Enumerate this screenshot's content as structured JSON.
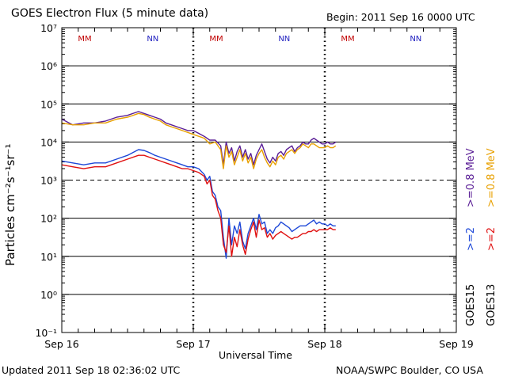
{
  "chart_data": {
    "type": "line",
    "title": "GOES Electron Flux (5 minute data)",
    "begin_label": "Begin: 2011 Sep 16 0000 UTC",
    "xlabel": "Universal Time",
    "ylabel": "Particles cm⁻²s⁻¹sr⁻¹",
    "yscale": "log",
    "ylim_exp": [
      -1,
      7
    ],
    "y_tick_labels": [
      "10⁻¹",
      "10⁰",
      "10¹",
      "10²",
      "10³",
      "10⁴",
      "10⁵",
      "10⁶",
      "10⁷"
    ],
    "xlim_hours": [
      0,
      72
    ],
    "x_tick_labels": [
      "Sep 16",
      "Sep 17",
      "Sep 18",
      "Sep 19"
    ],
    "day_markers": [
      {
        "hour": 4.2,
        "text": "MM",
        "color": "#c00000"
      },
      {
        "hour": 16.6,
        "text": "NN",
        "color": "#2020c0"
      },
      {
        "hour": 28.2,
        "text": "MM",
        "color": "#c00000"
      },
      {
        "hour": 40.6,
        "text": "NN",
        "color": "#2020c0"
      },
      {
        "hour": 52.2,
        "text": "MM",
        "color": "#c00000"
      },
      {
        "hour": 64.6,
        "text": "NN",
        "color": "#2020c0"
      }
    ],
    "threshold_exp": 3,
    "series": [
      {
        "name": "GOES15 >=0.8 MeV",
        "color": "#5a1e96",
        "x": [
          0,
          2,
          4,
          6,
          8,
          10,
          12,
          14,
          15,
          16,
          17,
          18,
          19,
          20,
          21,
          22,
          23,
          24,
          26,
          27,
          28,
          29,
          29.5,
          30,
          30.5,
          31,
          31.5,
          32,
          32.5,
          33,
          33.5,
          34,
          34.5,
          35,
          35.5,
          36,
          36.5,
          37,
          37.5,
          38,
          38.5,
          39,
          39.5,
          40,
          40.5,
          41,
          41.5,
          42,
          42.5,
          43,
          43.5,
          44,
          44.5,
          45,
          45.5,
          46,
          46.5,
          47,
          47.5,
          48,
          48.5,
          49,
          49.5,
          50
        ],
        "y": [
          4.6,
          4.45,
          4.5,
          4.5,
          4.55,
          4.65,
          4.7,
          4.8,
          4.75,
          4.7,
          4.65,
          4.6,
          4.5,
          4.45,
          4.4,
          4.35,
          4.3,
          4.3,
          4.15,
          4.05,
          4.05,
          3.9,
          3.4,
          4.0,
          3.7,
          3.85,
          3.5,
          3.75,
          3.9,
          3.6,
          3.8,
          3.55,
          3.7,
          3.4,
          3.65,
          3.8,
          3.95,
          3.75,
          3.55,
          3.45,
          3.6,
          3.5,
          3.7,
          3.75,
          3.65,
          3.8,
          3.85,
          3.9,
          3.75,
          3.85,
          3.9,
          4.0,
          3.95,
          3.95,
          4.05,
          4.1,
          4.05,
          4.0,
          3.95,
          3.95,
          4.0,
          3.95,
          3.95,
          4.0
        ]
      },
      {
        "name": "GOES13 >=0.8 MeV",
        "color": "#e8a000",
        "x": [
          0,
          2,
          4,
          6,
          8,
          10,
          12,
          14,
          15,
          16,
          17,
          18,
          19,
          20,
          21,
          22,
          23,
          24,
          26,
          27,
          28,
          29,
          29.5,
          30,
          30.5,
          31,
          31.5,
          32,
          32.5,
          33,
          33.5,
          34,
          34.5,
          35,
          35.5,
          36,
          36.5,
          37,
          37.5,
          38,
          38.5,
          39,
          39.5,
          40,
          40.5,
          41,
          41.5,
          42,
          42.5,
          43,
          43.5,
          44,
          44.5,
          45,
          45.5,
          46,
          46.5,
          47,
          47.5,
          48,
          48.5,
          49,
          49.5,
          50
        ],
        "y": [
          4.5,
          4.45,
          4.45,
          4.5,
          4.5,
          4.6,
          4.65,
          4.75,
          4.72,
          4.65,
          4.6,
          4.55,
          4.45,
          4.4,
          4.35,
          4.3,
          4.25,
          4.2,
          4.1,
          3.95,
          4.0,
          3.8,
          3.3,
          3.9,
          3.6,
          3.75,
          3.4,
          3.6,
          3.8,
          3.5,
          3.7,
          3.45,
          3.6,
          3.3,
          3.55,
          3.7,
          3.8,
          3.6,
          3.45,
          3.35,
          3.5,
          3.4,
          3.6,
          3.65,
          3.55,
          3.7,
          3.75,
          3.8,
          3.7,
          3.8,
          3.85,
          3.95,
          3.9,
          3.85,
          3.95,
          3.95,
          3.9,
          3.85,
          3.85,
          3.85,
          3.9,
          3.85,
          3.85,
          3.9
        ]
      },
      {
        "name": "GOES15 >=2 MeV",
        "color": "#1e48d8",
        "x": [
          0,
          2,
          4,
          6,
          8,
          10,
          12,
          14,
          15,
          16,
          17,
          18,
          19,
          20,
          21,
          22,
          23,
          24,
          25,
          26,
          26.5,
          27,
          27.5,
          28,
          28.5,
          29,
          29.5,
          30,
          30.5,
          31,
          31.5,
          32,
          32.5,
          33,
          33.5,
          34,
          34.5,
          35,
          35.5,
          36,
          36.5,
          37,
          37.5,
          38,
          38.5,
          39,
          39.5,
          40,
          40.5,
          41,
          41.5,
          42,
          42.5,
          43,
          43.5,
          44,
          44.5,
          45,
          45.5,
          46,
          46.5,
          47,
          47.5,
          48,
          48.5,
          49,
          49.5,
          50
        ],
        "y": [
          3.5,
          3.45,
          3.4,
          3.45,
          3.45,
          3.55,
          3.65,
          3.8,
          3.78,
          3.72,
          3.65,
          3.6,
          3.55,
          3.5,
          3.45,
          3.4,
          3.35,
          3.35,
          3.3,
          3.15,
          3.0,
          3.1,
          2.7,
          2.6,
          2.3,
          2.2,
          1.5,
          0.95,
          2.0,
          1.3,
          1.8,
          1.6,
          1.9,
          1.4,
          1.2,
          1.6,
          1.8,
          2.0,
          1.7,
          2.1,
          1.85,
          1.9,
          1.6,
          1.7,
          1.6,
          1.75,
          1.8,
          1.9,
          1.85,
          1.8,
          1.75,
          1.65,
          1.7,
          1.75,
          1.8,
          1.8,
          1.8,
          1.85,
          1.9,
          1.95,
          1.85,
          1.9,
          1.85,
          1.85,
          1.8,
          1.85,
          1.8,
          1.8
        ]
      },
      {
        "name": "GOES13 >=2 MeV",
        "color": "#e01010",
        "x": [
          0,
          2,
          4,
          6,
          8,
          10,
          12,
          14,
          15,
          16,
          17,
          18,
          19,
          20,
          21,
          22,
          23,
          24,
          25,
          26,
          26.5,
          27,
          27.5,
          28,
          28.5,
          29,
          29.5,
          30,
          30.5,
          31,
          31.5,
          32,
          32.5,
          33,
          33.5,
          34,
          34.5,
          35,
          35.5,
          36,
          36.5,
          37,
          37.5,
          38,
          38.5,
          39,
          39.5,
          40,
          40.5,
          41,
          41.5,
          42,
          42.5,
          43,
          43.5,
          44,
          44.5,
          45,
          45.5,
          46,
          46.5,
          47,
          47.5,
          48,
          48.5,
          49,
          49.5,
          50
        ],
        "y": [
          3.4,
          3.35,
          3.3,
          3.35,
          3.35,
          3.45,
          3.55,
          3.65,
          3.65,
          3.6,
          3.55,
          3.5,
          3.45,
          3.4,
          3.35,
          3.3,
          3.3,
          3.25,
          3.2,
          3.1,
          2.9,
          3.0,
          2.6,
          2.5,
          2.2,
          2.0,
          1.3,
          1.1,
          1.8,
          1.0,
          1.5,
          1.25,
          1.7,
          1.3,
          1.05,
          1.45,
          1.7,
          1.9,
          1.5,
          1.95,
          1.7,
          1.75,
          1.5,
          1.6,
          1.45,
          1.55,
          1.6,
          1.65,
          1.6,
          1.55,
          1.5,
          1.45,
          1.5,
          1.5,
          1.55,
          1.6,
          1.6,
          1.65,
          1.65,
          1.7,
          1.65,
          1.7,
          1.7,
          1.7,
          1.7,
          1.75,
          1.7,
          1.7
        ]
      }
    ]
  },
  "legend": {
    "left_col": [
      "GOES15",
      ">=2",
      ">=0.8 MeV"
    ],
    "right_col": [
      "GOES13",
      ">=2",
      ">=0.8 MeV"
    ]
  },
  "footer": {
    "updated": "Updated 2011 Sep 18 02:36:02 UTC",
    "source": "NOAA/SWPC Boulder, CO USA"
  }
}
